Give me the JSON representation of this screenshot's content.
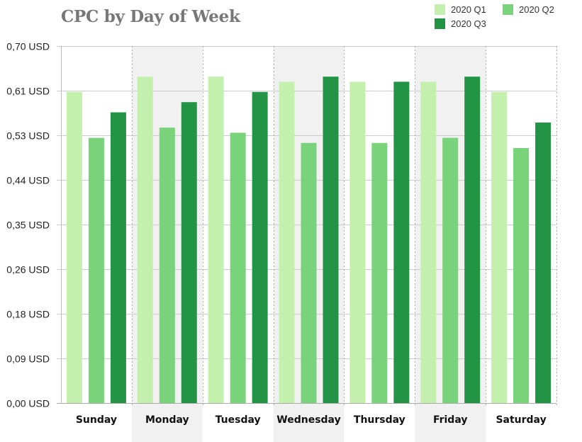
{
  "chart_data": {
    "type": "bar",
    "title": "CPC by Day of Week",
    "xlabel": "",
    "ylabel": "",
    "categories": [
      "Sunday",
      "Monday",
      "Tuesday",
      "Wednesday",
      "Thursday",
      "Friday",
      "Saturday"
    ],
    "series": [
      {
        "name": "2020 Q1",
        "color": "#c4f0ae",
        "values": [
          0.61,
          0.64,
          0.64,
          0.63,
          0.63,
          0.63,
          0.61
        ]
      },
      {
        "name": "2020 Q2",
        "color": "#78d37a",
        "values": [
          0.52,
          0.54,
          0.53,
          0.51,
          0.51,
          0.52,
          0.5
        ]
      },
      {
        "name": "2020 Q3",
        "color": "#239445",
        "values": [
          0.57,
          0.59,
          0.61,
          0.64,
          0.63,
          0.64,
          0.55
        ]
      }
    ],
    "ylim": [
      0,
      0.7
    ],
    "yticks": [
      0,
      0.0875,
      0.175,
      0.2625,
      0.35,
      0.4375,
      0.525,
      0.6125,
      0.7
    ],
    "ytick_labels": [
      "0,00 USD",
      "0,09 USD",
      "0,18 USD",
      "0,26 USD",
      "0,35 USD",
      "0,44 USD",
      "0,53 USD",
      "0,61 USD",
      "0,70 USD"
    ],
    "shaded_categories": [
      "Monday",
      "Wednesday",
      "Friday"
    ],
    "grid": true,
    "legend_position": "top-right",
    "colors": {
      "title": "#77777a",
      "grid": "#cccccc",
      "shade": "#f1f1f1",
      "separator": "#aaaaaa"
    }
  }
}
